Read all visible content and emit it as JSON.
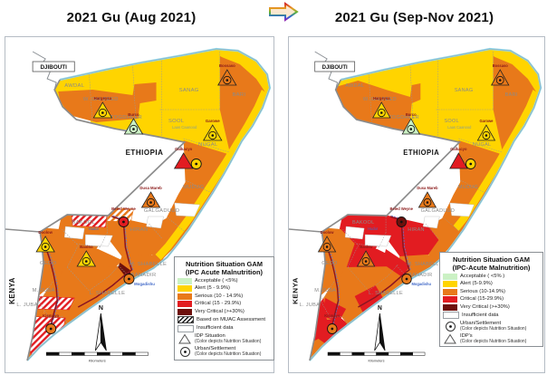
{
  "header": {
    "left_title": "2021 Gu (Aug 2021)",
    "right_title": "2021 Gu (Sep-Nov 2021)",
    "arrow_icon": "rainbow-right-arrow"
  },
  "colors": {
    "acceptable": "#CBF1C4",
    "alert": "#FFD400",
    "serious": "#E8791A",
    "critical": "#E21C21",
    "very_critical": "#6E100C",
    "insufficient": "#FFFFFF",
    "sea": "#8FD8EA",
    "river": "#8B1520",
    "river_blue": "#5A79D6",
    "country_border": "#8C8C8C",
    "region_border": "#9A9A9A",
    "region_label": "#8A8A8A",
    "settlement_label": "#8B1A1A",
    "water_label": "#4169C8",
    "laas_label": "#8CA08C"
  },
  "maps": [
    {
      "id": "left",
      "neighbors": {
        "djibouti": "DJIBOUTI",
        "ethiopia": "ETHIOPIA",
        "kenya": "KENYA"
      },
      "regions": [
        {
          "id": "awdal",
          "label": "AWDAL",
          "status": "alert"
        },
        {
          "id": "wgalbeed",
          "label": "W. GALBEED",
          "status": "alert"
        },
        {
          "id": "togdheer",
          "label": "TOGDHEER",
          "status": "alert"
        },
        {
          "id": "sanag",
          "label": "SANAG",
          "status": "alert"
        },
        {
          "id": "sool",
          "label": "SOOL",
          "status": "alert"
        },
        {
          "id": "bari",
          "label": "BARI",
          "status": "serious"
        },
        {
          "id": "nugal",
          "label": "NUGAL",
          "status": "serious"
        },
        {
          "id": "mudug",
          "label": "MUDUG",
          "status": "serious"
        },
        {
          "id": "galgaduud",
          "label": "GALGADUUD",
          "status": "serious"
        },
        {
          "id": "hiran",
          "label": "HIRAN",
          "status": "serious"
        },
        {
          "id": "bakool",
          "label": "BAKOOL",
          "status": "serious"
        },
        {
          "id": "gedo",
          "label": "GEDO",
          "status": "serious"
        },
        {
          "id": "bay",
          "label": "BAY",
          "status": "serious"
        },
        {
          "id": "mshabelle",
          "label": "M. SHABELLE",
          "status": "serious"
        },
        {
          "id": "banadir",
          "label": "BANADIR",
          "status": "serious"
        },
        {
          "id": "lshabelle",
          "label": "L. SHABELLE",
          "status": "serious"
        },
        {
          "id": "mjuba",
          "label": "M. JUBA",
          "status": "serious"
        },
        {
          "id": "ljuba",
          "label": "L. JUBA",
          "status": "serious"
        }
      ],
      "band": "band_left",
      "strip": "strip_left",
      "patches": [
        {
          "id": "mshab_sliver",
          "status": "very_critical"
        }
      ],
      "muac": [
        {
          "id": "h1",
          "pattern": "red"
        },
        {
          "id": "h2",
          "pattern": "orange"
        },
        {
          "id": "h3",
          "pattern": "red"
        },
        {
          "id": "h4",
          "pattern": "red"
        }
      ],
      "markers": [
        {
          "id": "bossaso",
          "label": "Bossaso",
          "type": "idp",
          "status": "serious"
        },
        {
          "id": "hargeisa",
          "label": "Hargeysa",
          "type": "idp",
          "status": "alert"
        },
        {
          "id": "burco",
          "label": "Burco",
          "type": "idp",
          "status": "acceptable"
        },
        {
          "id": "garowe",
          "label": "Garowe",
          "type": "idp",
          "status": "alert"
        },
        {
          "id": "galkacyo_idp",
          "label": "Galkacyo",
          "type": "idp_plain",
          "status": "critical"
        },
        {
          "id": "galkacyo",
          "label": "",
          "type": "urban",
          "status": "alert"
        },
        {
          "id": "dusamareb",
          "label": "Dusa Mareb",
          "type": "idp",
          "status": "serious"
        },
        {
          "id": "beledweyne",
          "label": "Beled Weyne",
          "type": "urban",
          "status": "critical"
        },
        {
          "id": "dolow",
          "label": "Doolow",
          "type": "idp",
          "status": "alert"
        },
        {
          "id": "baidoa",
          "label": "Baidoa",
          "type": "idp",
          "status": "alert"
        },
        {
          "id": "mogadishu",
          "label": "Mogadishu",
          "type": "urban",
          "status": "serious",
          "label_color": "water"
        },
        {
          "id": "kismayo",
          "label": "Kismayo",
          "type": "urban",
          "status": "serious"
        }
      ],
      "place_labels": [
        {
          "id": "hudur",
          "label": "Hudur",
          "color": "water"
        },
        {
          "id": "laascaanood",
          "label": "Laas Caanood",
          "color": "sage"
        }
      ],
      "legend": {
        "title1": "Nutrition Situation GAM",
        "title2": "(IPC Acute Malnutrition)",
        "items": [
          {
            "kind": "swatch",
            "color": "acceptable",
            "label": "Acceptable ( <5%)"
          },
          {
            "kind": "swatch",
            "color": "alert",
            "label": "Alert (5 - 9.9%)"
          },
          {
            "kind": "swatch",
            "color": "serious",
            "label": "Serious (10 - 14.9%)"
          },
          {
            "kind": "swatch",
            "color": "critical",
            "label": "Critical (15 - 29.9%)"
          },
          {
            "kind": "swatch",
            "color": "very_critical",
            "label": "Very Critical (>+30%)"
          },
          {
            "kind": "hatch",
            "label": "Based on MUAC Assessment"
          },
          {
            "kind": "box",
            "label": "Insufficient data"
          },
          {
            "kind": "triangle",
            "label": "IDP Situation",
            "sub": "(Color depicts Nutrition Situation)"
          },
          {
            "kind": "circle",
            "label": "Urban/Settlement",
            "sub": "(Color depicts Nutrition Situation)"
          }
        ]
      },
      "compass": {
        "north": "N",
        "scale_caption": "Kilometers"
      }
    },
    {
      "id": "right",
      "neighbors": {
        "djibouti": "DJIBOUTI",
        "ethiopia": "ETHIOPIA",
        "kenya": "KENYA"
      },
      "regions": [
        {
          "id": "awdal",
          "label": "AWDAL",
          "status": "alert"
        },
        {
          "id": "wgalbeed",
          "label": "W. GALBEED",
          "status": "alert"
        },
        {
          "id": "togdheer",
          "label": "TOGDHEER",
          "status": "alert"
        },
        {
          "id": "sanag",
          "label": "SANAG",
          "status": "alert"
        },
        {
          "id": "sool",
          "label": "SOOL",
          "status": "alert"
        },
        {
          "id": "bari",
          "label": "BARI",
          "status": "serious"
        },
        {
          "id": "nugal",
          "label": "NUGAL",
          "status": "serious"
        },
        {
          "id": "mudug",
          "label": "MUDUG",
          "status": "serious"
        },
        {
          "id": "galgaduud",
          "label": "GALGADUUD",
          "status": "serious"
        },
        {
          "id": "hiran",
          "label": "HIRAN",
          "status": "critical"
        },
        {
          "id": "bakool",
          "label": "BAKOOL",
          "status": "critical"
        },
        {
          "id": "gedo",
          "label": "GEDO",
          "status": "serious"
        },
        {
          "id": "bay",
          "label": "BAY",
          "status": "critical"
        },
        {
          "id": "mshabelle",
          "label": "M. SHABELLE",
          "status": "serious"
        },
        {
          "id": "banadir",
          "label": "BANADIR",
          "status": "serious"
        },
        {
          "id": "lshabelle",
          "label": "L. SHABELLE",
          "status": "serious"
        },
        {
          "id": "mjuba",
          "label": "M. JUBA",
          "status": "serious"
        },
        {
          "id": "ljuba",
          "label": "L. JUBA",
          "status": "critical"
        }
      ],
      "band": "band_right",
      "strip": "strip_right",
      "patches": [
        {
          "id": "mshab_red",
          "status": "critical"
        },
        {
          "id": "lshab_red",
          "status": "critical"
        },
        {
          "id": "mjuba_red",
          "status": "critical"
        },
        {
          "id": "ljuba_tip",
          "status": "serious"
        }
      ],
      "muac": [],
      "markers": [
        {
          "id": "bossaso",
          "label": "Bossaso",
          "type": "idp",
          "status": "serious"
        },
        {
          "id": "hargeisa",
          "label": "Hargeysa",
          "type": "idp",
          "status": "alert"
        },
        {
          "id": "burco",
          "label": "Burco",
          "type": "idp",
          "status": "acceptable"
        },
        {
          "id": "garowe",
          "label": "Garowe",
          "type": "idp",
          "status": "alert"
        },
        {
          "id": "galkacyo_idp",
          "label": "Galkacyo",
          "type": "idp_plain",
          "status": "critical"
        },
        {
          "id": "galkacyo",
          "label": "",
          "type": "urban",
          "status": "alert"
        },
        {
          "id": "dusamareb",
          "label": "Dusa Mareb",
          "type": "idp",
          "status": "serious"
        },
        {
          "id": "beledweyne",
          "label": "Beled Weyne",
          "type": "urban",
          "status": "very_critical"
        },
        {
          "id": "dolow",
          "label": "Doolow",
          "type": "idp",
          "status": "serious"
        },
        {
          "id": "baidoa",
          "label": "Baidoa",
          "type": "idp",
          "status": "serious"
        },
        {
          "id": "mogadishu",
          "label": "Mogadishu",
          "type": "urban",
          "status": "serious",
          "label_color": "water"
        },
        {
          "id": "kismayo",
          "label": "Kismayo",
          "type": "urban",
          "status": "serious"
        }
      ],
      "place_labels": [
        {
          "id": "hudur",
          "label": "Hudur",
          "color": "water"
        },
        {
          "id": "laascaanood",
          "label": "Laas Caanood",
          "color": "sage"
        }
      ],
      "legend": {
        "title1": "Nutrition Situation GAM",
        "title2": "(IPC-Acute Malnutrition)",
        "items": [
          {
            "kind": "swatch",
            "color": "acceptable",
            "label": "Acceptable ( <5% )"
          },
          {
            "kind": "swatch",
            "color": "alert",
            "label": "Alert (5-9.9%)"
          },
          {
            "kind": "swatch",
            "color": "serious",
            "label": "Serious (10-14.9%)"
          },
          {
            "kind": "swatch",
            "color": "critical",
            "label": "Critical (15-29.9%)"
          },
          {
            "kind": "swatch",
            "color": "very_critical",
            "label": "Very Critical (>+30%)"
          },
          {
            "kind": "box",
            "label": "Insufficient data"
          },
          {
            "kind": "circle",
            "label": "Urban/Settlement",
            "sub": "(Color depicts Nutrition Situation)"
          },
          {
            "kind": "triangle",
            "label": "IDP's",
            "sub": "(Color depicts Nutrition Situation)"
          }
        ]
      },
      "compass": {
        "north": "N",
        "scale_caption": "Kilometers"
      }
    }
  ]
}
